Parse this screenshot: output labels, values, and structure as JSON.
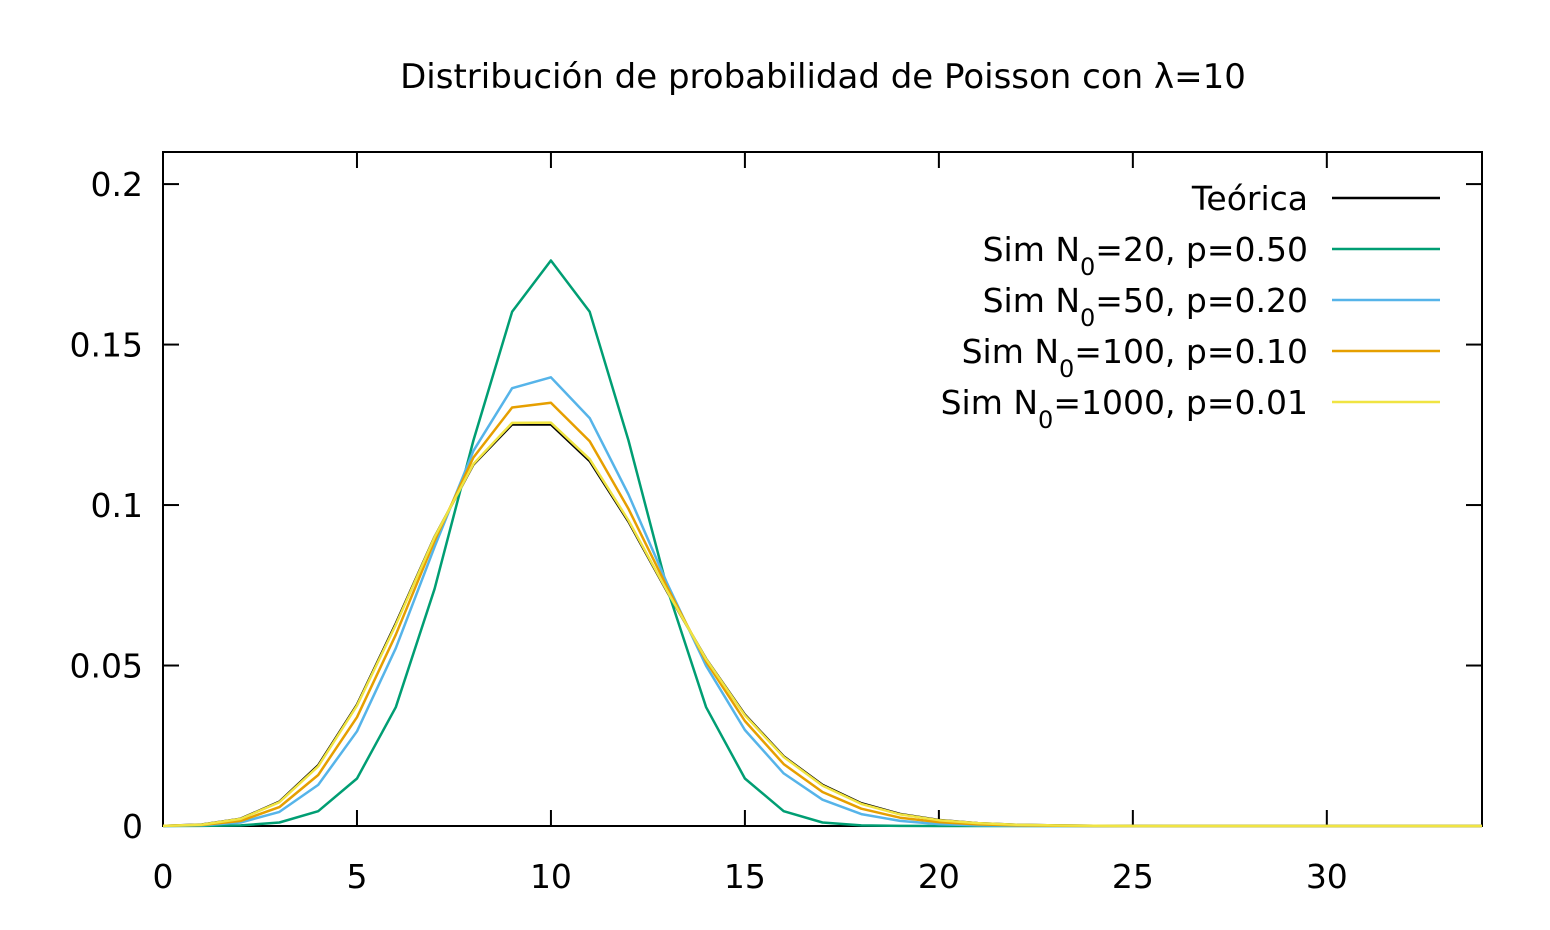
{
  "chart_data": {
    "type": "line",
    "title": "Distribución de probabilidad de Poisson con λ=10",
    "xlabel": "",
    "ylabel": "",
    "xlim": [
      0,
      34
    ],
    "ylim": [
      0,
      0.21
    ],
    "xticks": [
      "0",
      "5",
      "10",
      "15",
      "20",
      "25",
      "30"
    ],
    "yticks": [
      "0",
      "0.05",
      "0.1",
      "0.15",
      "0.2"
    ],
    "grid": false,
    "legend_position": "top-right",
    "x": [
      0,
      1,
      2,
      3,
      4,
      5,
      6,
      7,
      8,
      9,
      10,
      11,
      12,
      13,
      14,
      15,
      16,
      17,
      18,
      19,
      20,
      21,
      22,
      23,
      24,
      25,
      26,
      27,
      28,
      29,
      30,
      31,
      32,
      33,
      34
    ],
    "series": [
      {
        "name": "Teórica",
        "name_html": "Teórica",
        "color": "#000000",
        "values": [
          4.54e-05,
          0.000454,
          0.00227,
          0.00757,
          0.0189,
          0.0378,
          0.0631,
          0.0901,
          0.1126,
          0.1251,
          0.1251,
          0.1137,
          0.0948,
          0.0729,
          0.0521,
          0.0347,
          0.0217,
          0.0128,
          0.00709,
          0.00373,
          0.00187,
          0.00089,
          0.0004,
          0.00018,
          7e-05,
          3e-05,
          1e-05,
          0,
          0,
          0,
          0,
          0,
          0,
          0,
          0
        ]
      },
      {
        "name": "Sim N0=20, p=0.50",
        "name_html": "Sim N<tspan baseline-shift=\"sub\" font-size=\"24px\">0</tspan>=20, p=0.50",
        "color": "#009e73",
        "values": [
          1e-06,
          2e-05,
          0.00018,
          0.0011,
          0.0046,
          0.0148,
          0.037,
          0.0739,
          0.1201,
          0.1602,
          0.1762,
          0.1602,
          0.1201,
          0.0739,
          0.037,
          0.0148,
          0.0046,
          0.0011,
          0.00018,
          2e-05,
          1e-06,
          0,
          0,
          0,
          0,
          0,
          0,
          0,
          0,
          0,
          0,
          0,
          0,
          0,
          0
        ]
      },
      {
        "name": "Sim N0=50, p=0.20",
        "name_html": "Sim N<tspan baseline-shift=\"sub\" font-size=\"24px\">0</tspan>=50, p=0.20",
        "color": "#56b4e9",
        "values": [
          1.4e-05,
          0.00018,
          0.0011,
          0.0044,
          0.0128,
          0.0295,
          0.0554,
          0.087,
          0.1169,
          0.1364,
          0.1398,
          0.1271,
          0.1033,
          0.0755,
          0.0499,
          0.0299,
          0.0164,
          0.0082,
          0.0037,
          0.0016,
          0.0006,
          0.0002,
          0.0001,
          0,
          0,
          0,
          0,
          0,
          0,
          0,
          0,
          0,
          0,
          0,
          0
        ]
      },
      {
        "name": "Sim N0=100, p=0.10",
        "name_html": "Sim N<tspan baseline-shift=\"sub\" font-size=\"24px\">0</tspan>=100, p=0.10",
        "color": "#e69f00",
        "values": [
          2.7e-05,
          0.0003,
          0.0016,
          0.0059,
          0.0159,
          0.0339,
          0.0596,
          0.0889,
          0.1148,
          0.1304,
          0.1319,
          0.1199,
          0.0988,
          0.0743,
          0.0513,
          0.0327,
          0.0193,
          0.0106,
          0.0054,
          0.0026,
          0.0012,
          0.0005,
          0.0002,
          0.0001,
          0,
          0,
          0,
          0,
          0,
          0,
          0,
          0,
          0,
          0,
          0
        ]
      },
      {
        "name": "Sim N0=1000, p=0.01",
        "name_html": "Sim N<tspan baseline-shift=\"sub\" font-size=\"24px\">0</tspan>=1000, p=0.01",
        "color": "#f0e442",
        "values": [
          4.3e-05,
          0.00044,
          0.0022,
          0.0074,
          0.0186,
          0.0375,
          0.0627,
          0.09,
          0.1128,
          0.1256,
          0.1257,
          0.1143,
          0.0952,
          0.0731,
          0.052,
          0.0345,
          0.0215,
          0.0126,
          0.0069,
          0.0036,
          0.0018,
          0.0009,
          0.0004,
          0.0002,
          0.0001,
          0,
          0,
          0,
          0,
          0,
          0,
          0,
          0,
          0,
          0
        ]
      }
    ]
  }
}
